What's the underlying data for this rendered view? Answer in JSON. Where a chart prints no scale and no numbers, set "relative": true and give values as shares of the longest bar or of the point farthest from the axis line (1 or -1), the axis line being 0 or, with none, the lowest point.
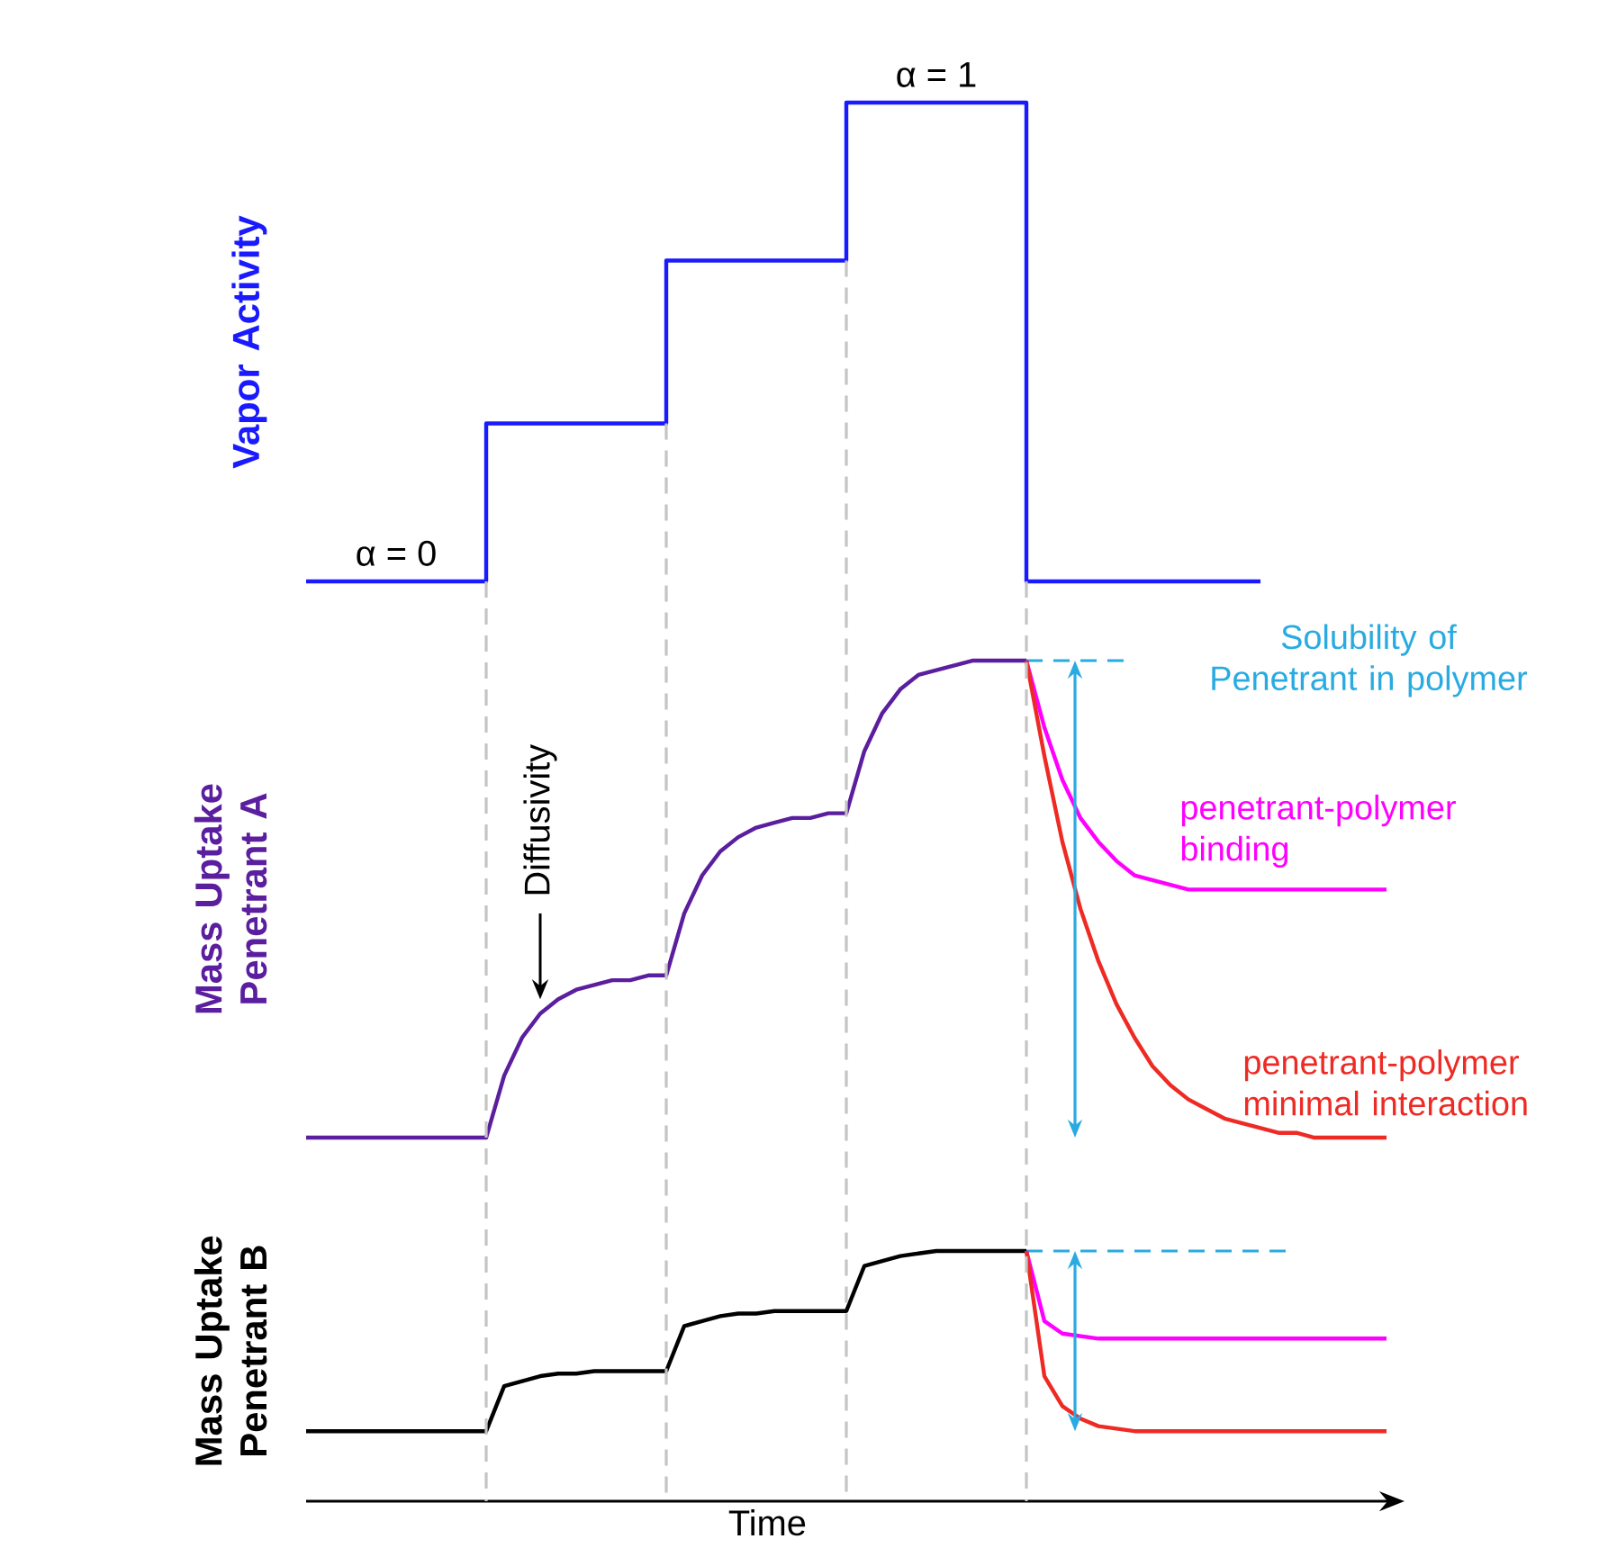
{
  "chart_data": [
    {
      "type": "step",
      "ylabel": "Vapor Activity",
      "relative": true,
      "categories": [
        null,
        null,
        null,
        null,
        null,
        null,
        null,
        null,
        null,
        null,
        null,
        null,
        null,
        null,
        null,
        null,
        null,
        null,
        null,
        null,
        null,
        null,
        null,
        null,
        null,
        null,
        null,
        null,
        null,
        null,
        null,
        null,
        null,
        null,
        null,
        null,
        null,
        null,
        null,
        null,
        null,
        null,
        null,
        null,
        null,
        null,
        null,
        null,
        null,
        null,
        null,
        null,
        null,
        null,
        null,
        null,
        null,
        null,
        null,
        null,
        null
      ],
      "series": [
        {
          "color": "#1a1aff",
          "values": [
            0,
            0,
            0,
            0,
            0,
            0,
            0,
            0,
            0,
            0,
            0.33,
            0.33,
            0.33,
            0.33,
            0.33,
            0.33,
            0.33,
            0.33,
            0.33,
            0.33,
            0.67,
            0.67,
            0.67,
            0.67,
            0.67,
            0.67,
            0.67,
            0.67,
            0.67,
            0.67,
            1,
            1,
            1,
            1,
            1,
            1,
            1,
            1,
            1,
            1,
            0,
            0,
            0,
            0,
            0,
            0,
            0,
            0,
            0,
            0,
            0,
            0,
            0,
            0,
            null,
            null,
            null,
            null,
            null,
            null,
            null
          ]
        }
      ],
      "annotations": [
        {
          "text": "α = 0",
          "y": 0
        },
        {
          "text": "α = 1",
          "y": 1
        }
      ]
    },
    {
      "type": "line",
      "ylabel": "Mass Uptake Penetrant A",
      "relative": true,
      "categories": [
        null,
        null,
        null,
        null,
        null,
        null,
        null,
        null,
        null,
        null,
        null,
        null,
        null,
        null,
        null,
        null,
        null,
        null,
        null,
        null,
        null,
        null,
        null,
        null,
        null,
        null,
        null,
        null,
        null,
        null,
        null,
        null,
        null,
        null,
        null,
        null,
        null,
        null,
        null,
        null,
        null,
        null,
        null,
        null,
        null,
        null,
        null,
        null,
        null,
        null,
        null,
        null,
        null,
        null,
        null,
        null,
        null,
        null,
        null,
        null,
        null
      ],
      "series": [
        {
          "color": "#5a1e9e",
          "values": [
            0,
            0,
            0,
            0,
            0,
            0,
            0,
            0,
            0,
            0,
            0,
            0.13,
            0.21,
            0.26,
            0.29,
            0.31,
            0.32,
            0.33,
            0.33,
            0.34,
            0.34,
            0.47,
            0.55,
            0.6,
            0.63,
            0.65,
            0.66,
            0.67,
            0.67,
            0.68,
            0.68,
            0.81,
            0.89,
            0.94,
            0.97,
            0.98,
            0.99,
            1,
            1,
            1,
            1,
            null,
            null,
            null,
            null,
            null,
            null,
            null,
            null,
            null,
            null,
            null,
            null,
            null,
            null,
            null,
            null,
            null,
            null,
            null,
            null
          ]
        },
        {
          "name": "penetrant-polymer binding",
          "color": "#ff00ff",
          "values": [
            null,
            null,
            null,
            null,
            null,
            null,
            null,
            null,
            null,
            null,
            null,
            null,
            null,
            null,
            null,
            null,
            null,
            null,
            null,
            null,
            null,
            null,
            null,
            null,
            null,
            null,
            null,
            null,
            null,
            null,
            null,
            null,
            null,
            null,
            null,
            null,
            null,
            null,
            null,
            null,
            1,
            0.86,
            0.75,
            0.67,
            0.62,
            0.58,
            0.55,
            0.54,
            0.53,
            0.52,
            0.52,
            0.52,
            0.52,
            0.52,
            0.52,
            0.52,
            0.52,
            0.52,
            0.52,
            0.52,
            0.52
          ]
        },
        {
          "name": "penetrant-polymer minimal interaction",
          "color": "#ee2a24",
          "values": [
            null,
            null,
            null,
            null,
            null,
            null,
            null,
            null,
            null,
            null,
            null,
            null,
            null,
            null,
            null,
            null,
            null,
            null,
            null,
            null,
            null,
            null,
            null,
            null,
            null,
            null,
            null,
            null,
            null,
            null,
            null,
            null,
            null,
            null,
            null,
            null,
            null,
            null,
            null,
            null,
            1,
            0.8,
            0.62,
            0.48,
            0.37,
            0.28,
            0.21,
            0.15,
            0.11,
            0.08,
            0.06,
            0.04,
            0.03,
            0.02,
            0.01,
            0.01,
            0,
            0,
            0,
            0,
            0
          ]
        }
      ],
      "ref_lines": [
        {
          "axis": "y",
          "value": 1,
          "label": "Solubility of Penetrant in polymer",
          "color": "#29abe2",
          "line_style": "dashed"
        }
      ],
      "annotations": [
        "Diffusivity"
      ]
    },
    {
      "type": "line",
      "ylabel": "Mass Uptake Penetrant B",
      "xlabel": "Time",
      "relative": true,
      "categories": [
        null,
        null,
        null,
        null,
        null,
        null,
        null,
        null,
        null,
        null,
        null,
        null,
        null,
        null,
        null,
        null,
        null,
        null,
        null,
        null,
        null,
        null,
        null,
        null,
        null,
        null,
        null,
        null,
        null,
        null,
        null,
        null,
        null,
        null,
        null,
        null,
        null,
        null,
        null,
        null,
        null,
        null,
        null,
        null,
        null,
        null,
        null,
        null,
        null,
        null,
        null,
        null,
        null,
        null,
        null,
        null,
        null,
        null,
        null,
        null,
        null
      ],
      "series": [
        {
          "color": "#000000",
          "values": [
            0.28,
            0.28,
            0.28,
            0.28,
            0.28,
            0.28,
            0.28,
            0.28,
            0.28,
            0.28,
            0.28,
            0.46,
            0.48,
            0.5,
            0.51,
            0.51,
            0.52,
            0.52,
            0.52,
            0.52,
            0.52,
            0.7,
            0.72,
            0.74,
            0.75,
            0.75,
            0.76,
            0.76,
            0.76,
            0.76,
            0.76,
            0.94,
            0.96,
            0.98,
            0.99,
            1,
            1,
            1,
            1,
            1,
            1,
            null,
            null,
            null,
            null,
            null,
            null,
            null,
            null,
            null,
            null,
            null,
            null,
            null,
            null,
            null,
            null,
            null,
            null,
            null,
            null
          ]
        },
        {
          "color": "#ff00ff",
          "values": [
            null,
            null,
            null,
            null,
            null,
            null,
            null,
            null,
            null,
            null,
            null,
            null,
            null,
            null,
            null,
            null,
            null,
            null,
            null,
            null,
            null,
            null,
            null,
            null,
            null,
            null,
            null,
            null,
            null,
            null,
            null,
            null,
            null,
            null,
            null,
            null,
            null,
            null,
            null,
            null,
            1,
            0.72,
            0.67,
            0.66,
            0.65,
            0.65,
            0.65,
            0.65,
            0.65,
            0.65,
            0.65,
            0.65,
            0.65,
            0.65,
            0.65,
            0.65,
            0.65,
            0.65,
            0.65,
            0.65,
            0.65
          ]
        },
        {
          "color": "#ee2a24",
          "values": [
            null,
            null,
            null,
            null,
            null,
            null,
            null,
            null,
            null,
            null,
            null,
            null,
            null,
            null,
            null,
            null,
            null,
            null,
            null,
            null,
            null,
            null,
            null,
            null,
            null,
            null,
            null,
            null,
            null,
            null,
            null,
            null,
            null,
            null,
            null,
            null,
            null,
            null,
            null,
            null,
            1,
            0.5,
            0.38,
            0.33,
            0.3,
            0.29,
            0.28,
            0.28,
            0.28,
            0.28,
            0.28,
            0.28,
            0.28,
            0.28,
            0.28,
            0.28,
            0.28,
            0.28,
            0.28,
            0.28,
            0.28
          ]
        }
      ],
      "ref_lines": [
        {
          "axis": "y",
          "value": 1,
          "color": "#29abe2",
          "line_style": "dashed"
        }
      ]
    }
  ]
}
